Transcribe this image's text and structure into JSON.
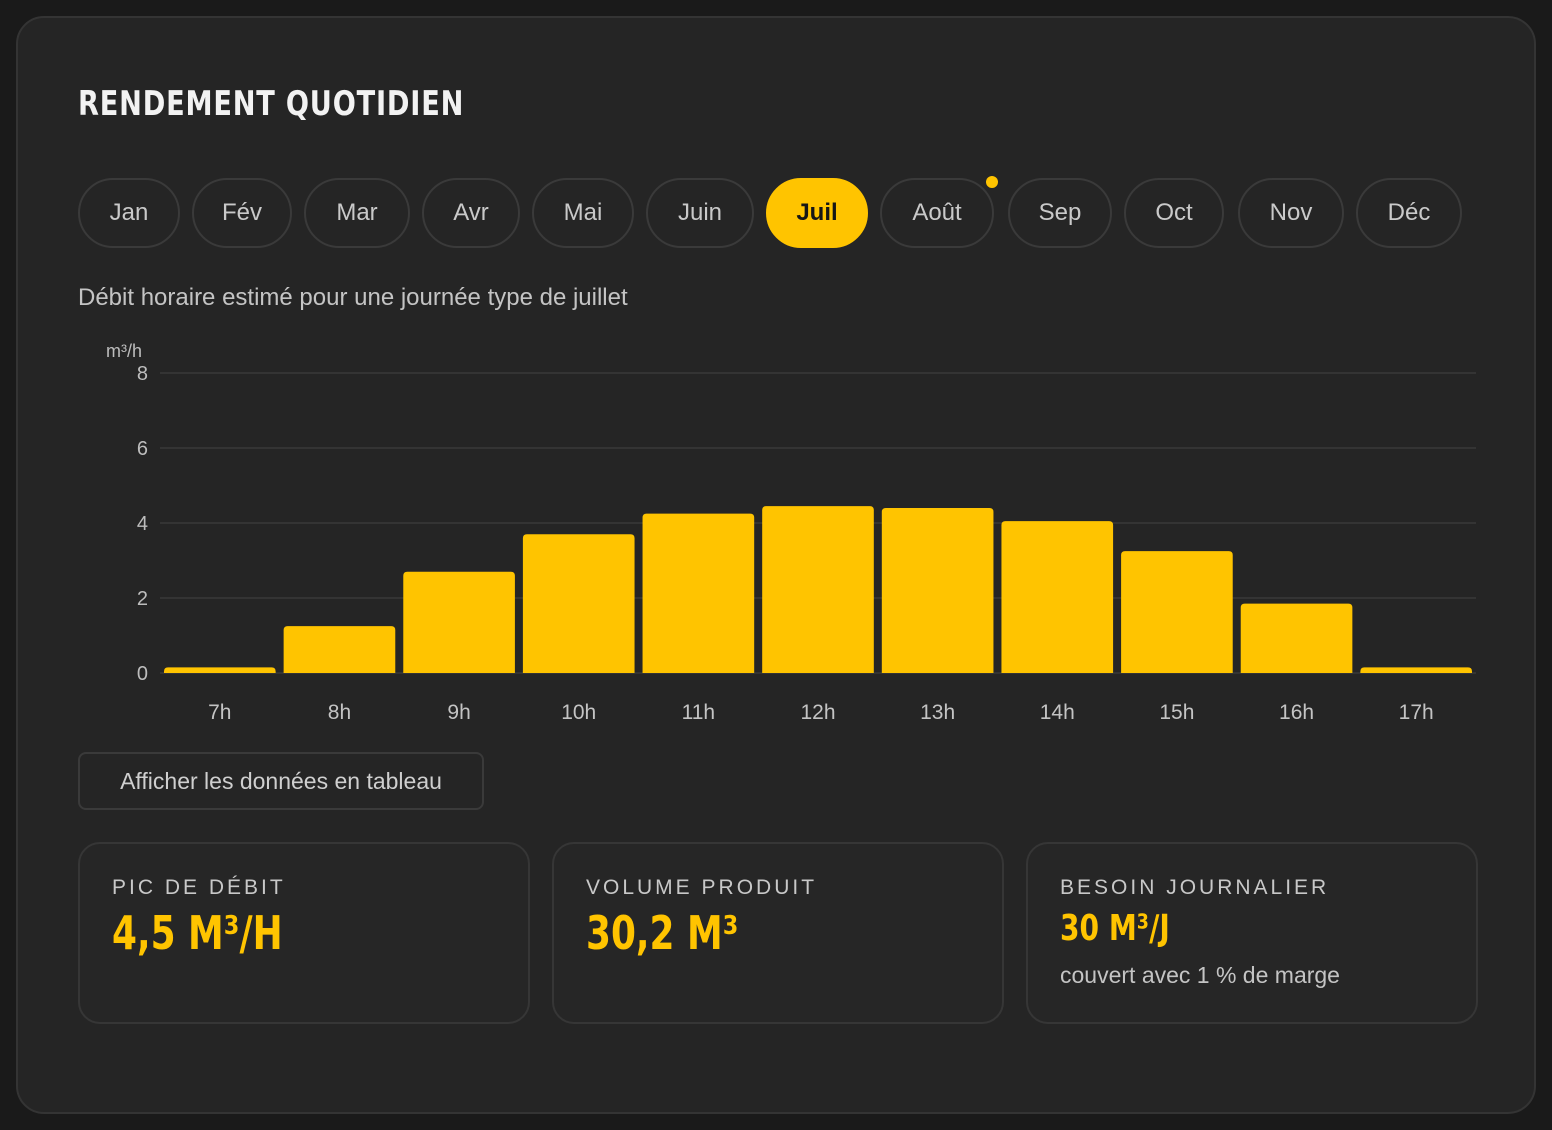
{
  "header": {
    "title": "RENDEMENT QUOTIDIEN"
  },
  "months": [
    {
      "label": "Jan",
      "active": false
    },
    {
      "label": "Fév",
      "active": false
    },
    {
      "label": "Mar",
      "active": false
    },
    {
      "label": "Avr",
      "active": false
    },
    {
      "label": "Mai",
      "active": false
    },
    {
      "label": "Juin",
      "active": false
    },
    {
      "label": "Juil",
      "active": true
    },
    {
      "label": "Août",
      "active": false,
      "marker": true
    },
    {
      "label": "Sep",
      "active": false
    },
    {
      "label": "Oct",
      "active": false
    },
    {
      "label": "Nov",
      "active": false
    },
    {
      "label": "Déc",
      "active": false
    }
  ],
  "subtitle": "Débit horaire estimé pour une journée type de juillet",
  "chart_data": {
    "type": "bar",
    "categories": [
      "7h",
      "8h",
      "9h",
      "10h",
      "11h",
      "12h",
      "13h",
      "14h",
      "15h",
      "16h",
      "17h"
    ],
    "values": [
      0.15,
      1.25,
      2.7,
      3.7,
      4.25,
      4.45,
      4.4,
      4.05,
      3.25,
      1.85,
      0.15
    ],
    "ylabel": "m³/h",
    "ylim": [
      0,
      8
    ],
    "yticks": [
      0,
      2,
      4,
      6,
      8
    ],
    "grid": true,
    "colors": {
      "bar": "#ffc400",
      "grid": "#3a3a3a"
    }
  },
  "table_button": {
    "label": "Afficher les données en tableau"
  },
  "stats": {
    "peak": {
      "label": "PIC DE DÉBIT",
      "value": "4,5 M³/H"
    },
    "volume": {
      "label": "VOLUME PRODUIT",
      "value": "30,2 M³"
    },
    "need": {
      "label": "BESOIN JOURNALIER",
      "value": "30 M³/J",
      "note": "couvert avec 1 % de marge"
    }
  },
  "colors": {
    "accent": "#ffc400",
    "card": "#252525",
    "background": "#1a1a1a"
  }
}
